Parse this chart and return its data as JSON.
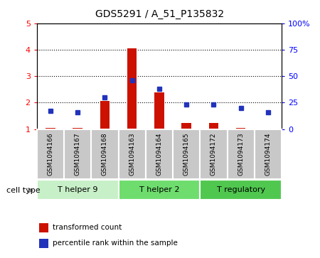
{
  "title": "GDS5291 / A_51_P135832",
  "samples": [
    "GSM1094166",
    "GSM1094167",
    "GSM1094168",
    "GSM1094163",
    "GSM1094164",
    "GSM1094165",
    "GSM1094172",
    "GSM1094173",
    "GSM1094174"
  ],
  "transformed_counts": [
    1.05,
    1.05,
    2.05,
    4.05,
    2.38,
    1.22,
    1.22,
    1.05,
    1.02
  ],
  "percentile_ranks": [
    17,
    16,
    30,
    46,
    38,
    23,
    23,
    20,
    16
  ],
  "cell_types": [
    {
      "label": "T helper 9",
      "start": 0,
      "end": 3,
      "color": "#c8f0c8"
    },
    {
      "label": "T helper 2",
      "start": 3,
      "end": 6,
      "color": "#6edd6e"
    },
    {
      "label": "T regulatory",
      "start": 6,
      "end": 9,
      "color": "#50c850"
    }
  ],
  "ylim_left": [
    1,
    5
  ],
  "ylim_right": [
    0,
    100
  ],
  "yticks_left": [
    1,
    2,
    3,
    4,
    5
  ],
  "yticks_right": [
    0,
    25,
    50,
    75,
    100
  ],
  "ytick_labels_right": [
    "0",
    "25",
    "50",
    "75",
    "100%"
  ],
  "bar_color": "#cc1100",
  "dot_color": "#2233bb",
  "bar_width": 0.35,
  "sample_bg_color": "#c8c8c8",
  "legend_red_label": "transformed count",
  "legend_blue_label": "percentile rank within the sample",
  "cell_type_label": "cell type"
}
